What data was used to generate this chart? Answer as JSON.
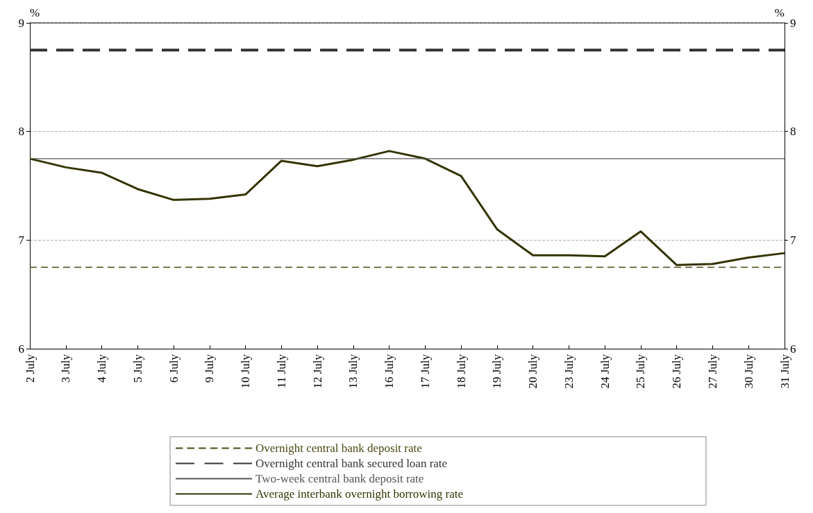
{
  "chart_data": {
    "type": "line",
    "ylabel": "%",
    "y2label": "%",
    "categories": [
      "2 July",
      "3 July",
      "4 July",
      "5 July",
      "6 July",
      "9 July",
      "10 July",
      "11 July",
      "12 July",
      "13 July",
      "16 July",
      "17 July",
      "18 July",
      "19 July",
      "20 July",
      "23 July",
      "24 July",
      "25 July",
      "26 July",
      "27 July",
      "30 July",
      "31 July"
    ],
    "series": [
      {
        "name": "Overnight central bank deposit rate",
        "color": "#4a4714",
        "line_style": "dashed",
        "values": [
          6.75,
          6.75,
          6.75,
          6.75,
          6.75,
          6.75,
          6.75,
          6.75,
          6.75,
          6.75,
          6.75,
          6.75,
          6.75,
          6.75,
          6.75,
          6.75,
          6.75,
          6.75,
          6.75,
          6.75,
          6.75,
          6.75
        ]
      },
      {
        "name": "Overnight central bank secured loan rate",
        "color": "#333333",
        "line_style": "dashed",
        "values": [
          8.75,
          8.75,
          8.75,
          8.75,
          8.75,
          8.75,
          8.75,
          8.75,
          8.75,
          8.75,
          8.75,
          8.75,
          8.75,
          8.75,
          8.75,
          8.75,
          8.75,
          8.75,
          8.75,
          8.75,
          8.75,
          8.75
        ]
      },
      {
        "name": "Two-week central bank deposit rate",
        "color": "#555555",
        "line_style": "solid",
        "values": [
          7.75,
          7.75,
          7.75,
          7.75,
          7.75,
          7.75,
          7.75,
          7.75,
          7.75,
          7.75,
          7.75,
          7.75,
          7.75,
          7.75,
          7.75,
          7.75,
          7.75,
          7.75,
          7.75,
          7.75,
          7.75,
          7.75
        ]
      },
      {
        "name": "Average interbank overnight borrowing rate",
        "color": "#333300",
        "line_style": "solid",
        "values": [
          7.75,
          7.67,
          7.62,
          7.47,
          7.37,
          7.38,
          7.42,
          7.73,
          7.68,
          7.74,
          7.82,
          7.75,
          7.59,
          7.1,
          6.86,
          6.86,
          6.85,
          7.08,
          6.77,
          6.78,
          6.84,
          6.88
        ]
      }
    ],
    "ylim": [
      6,
      9
    ],
    "yticks": [
      6,
      7,
      8,
      9
    ],
    "y2lim": [
      6,
      9
    ],
    "y2ticks": [
      6,
      7,
      8,
      9
    ],
    "grid": "y",
    "legend": "bottom",
    "marker": "none"
  }
}
